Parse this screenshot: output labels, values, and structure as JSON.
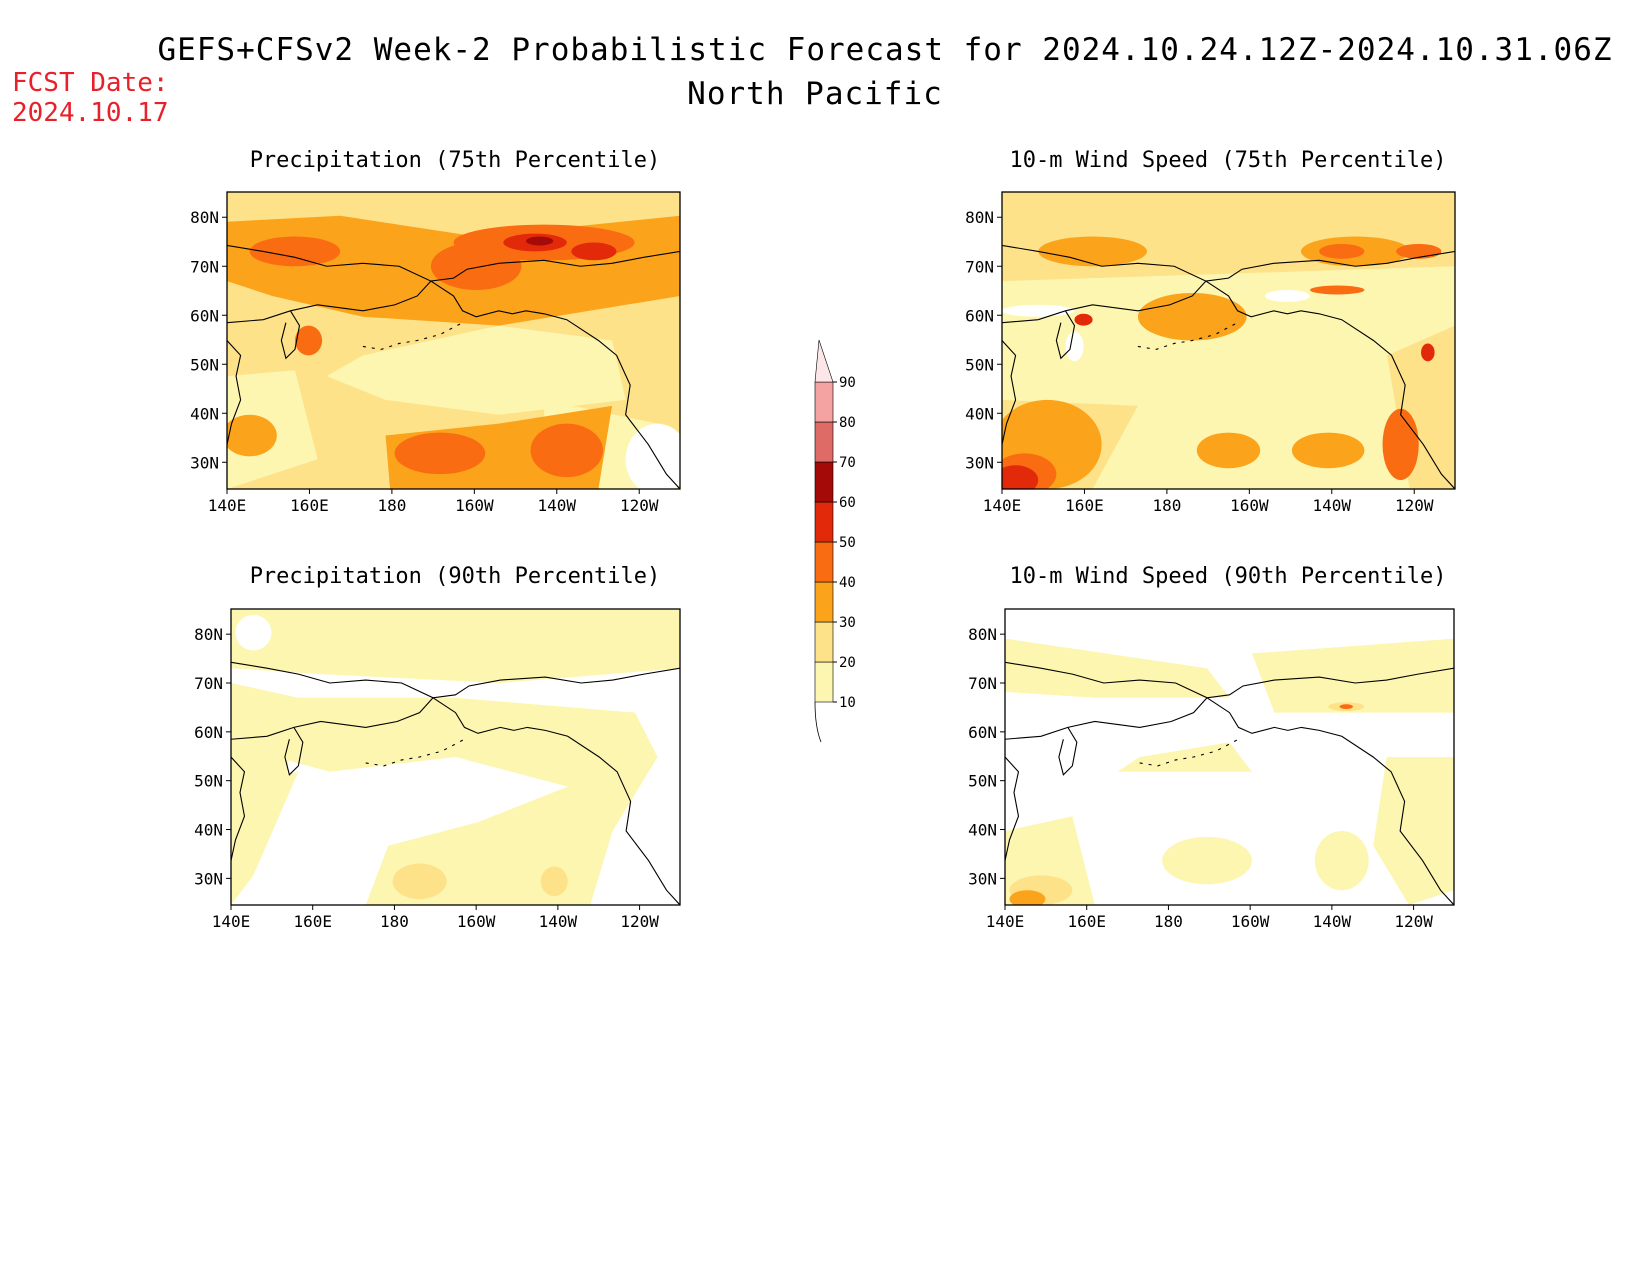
{
  "header": {
    "title": "GEFS+CFSv2 Week-2 Probabilistic Forecast for 2024.10.24.12Z-2024.10.31.06Z",
    "subtitle": "North Pacific",
    "fcst_label": "FCST Date:",
    "fcst_date": "2024.10.17"
  },
  "panels": [
    {
      "title": "Precipitation (75th Percentile)"
    },
    {
      "title": "10-m Wind Speed (75th Percentile)"
    },
    {
      "title": "Precipitation (90th Percentile)"
    },
    {
      "title": "10-m Wind Speed (90th Percentile)"
    }
  ],
  "axes": {
    "lat_labels": [
      "80N",
      "70N",
      "60N",
      "50N",
      "40N",
      "30N"
    ],
    "lon_labels": [
      "140E",
      "160E",
      "180",
      "160W",
      "140W",
      "120W"
    ]
  },
  "colorbar": {
    "levels": [
      "10",
      "20",
      "30",
      "40",
      "50",
      "60",
      "70",
      "80",
      "90"
    ],
    "colors": [
      "#fdf6b0",
      "#fde28a",
      "#fca31c",
      "#f96c12",
      "#e22a0a",
      "#a40a08",
      "#df6b67",
      "#f4a2a2",
      "#fde6e8"
    ]
  }
}
